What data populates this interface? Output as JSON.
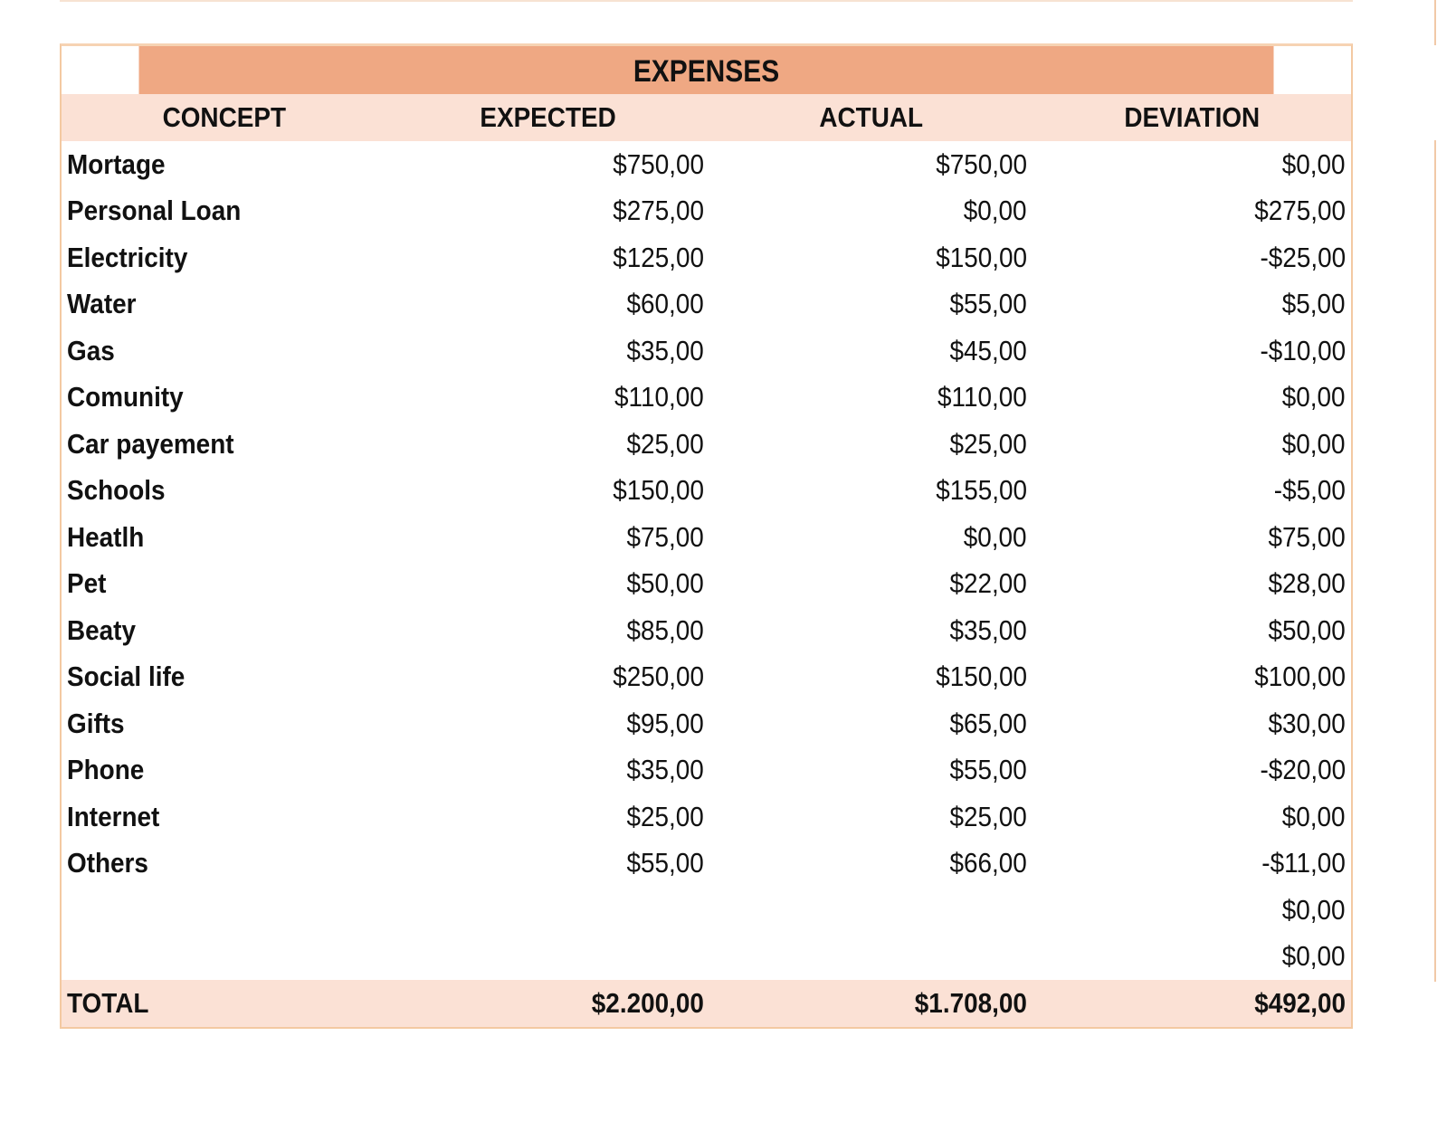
{
  "title": "EXPENSES",
  "columns": [
    "CONCEPT",
    "EXPECTED",
    "ACTUAL",
    "DEVIATION"
  ],
  "rows": [
    {
      "concept": "Mortage",
      "expected": "$750,00",
      "actual": "$750,00",
      "deviation": "$0,00"
    },
    {
      "concept": "Personal Loan",
      "expected": "$275,00",
      "actual": "$0,00",
      "deviation": "$275,00"
    },
    {
      "concept": "Electricity",
      "expected": "$125,00",
      "actual": "$150,00",
      "deviation": "-$25,00"
    },
    {
      "concept": "Water",
      "expected": "$60,00",
      "actual": "$55,00",
      "deviation": "$5,00"
    },
    {
      "concept": "Gas",
      "expected": "$35,00",
      "actual": "$45,00",
      "deviation": "-$10,00"
    },
    {
      "concept": "Comunity",
      "expected": "$110,00",
      "actual": "$110,00",
      "deviation": "$0,00"
    },
    {
      "concept": "Car payement",
      "expected": "$25,00",
      "actual": "$25,00",
      "deviation": "$0,00"
    },
    {
      "concept": "Schools",
      "expected": "$150,00",
      "actual": "$155,00",
      "deviation": "-$5,00"
    },
    {
      "concept": "Heatlh",
      "expected": "$75,00",
      "actual": "$0,00",
      "deviation": "$75,00"
    },
    {
      "concept": "Pet",
      "expected": "$50,00",
      "actual": "$22,00",
      "deviation": "$28,00"
    },
    {
      "concept": "Beaty",
      "expected": "$85,00",
      "actual": "$35,00",
      "deviation": "$50,00"
    },
    {
      "concept": "Social life",
      "expected": "$250,00",
      "actual": "$150,00",
      "deviation": "$100,00"
    },
    {
      "concept": "Gifts",
      "expected": "$95,00",
      "actual": "$65,00",
      "deviation": "$30,00"
    },
    {
      "concept": "Phone",
      "expected": "$35,00",
      "actual": "$55,00",
      "deviation": "-$20,00"
    },
    {
      "concept": "Internet",
      "expected": "$25,00",
      "actual": "$25,00",
      "deviation": "$0,00"
    },
    {
      "concept": "Others",
      "expected": "$55,00",
      "actual": "$66,00",
      "deviation": "-$11,00"
    },
    {
      "concept": "",
      "expected": "",
      "actual": "",
      "deviation": "$0,00"
    },
    {
      "concept": "",
      "expected": "",
      "actual": "",
      "deviation": "$0,00"
    }
  ],
  "total": {
    "label": "TOTAL",
    "expected": "$2.200,00",
    "actual": "$1.708,00",
    "deviation": "$492,00"
  },
  "colors": {
    "title_bg": "#efa883",
    "header_bg": "#fbe1d5",
    "border": "#f3c9a2"
  }
}
